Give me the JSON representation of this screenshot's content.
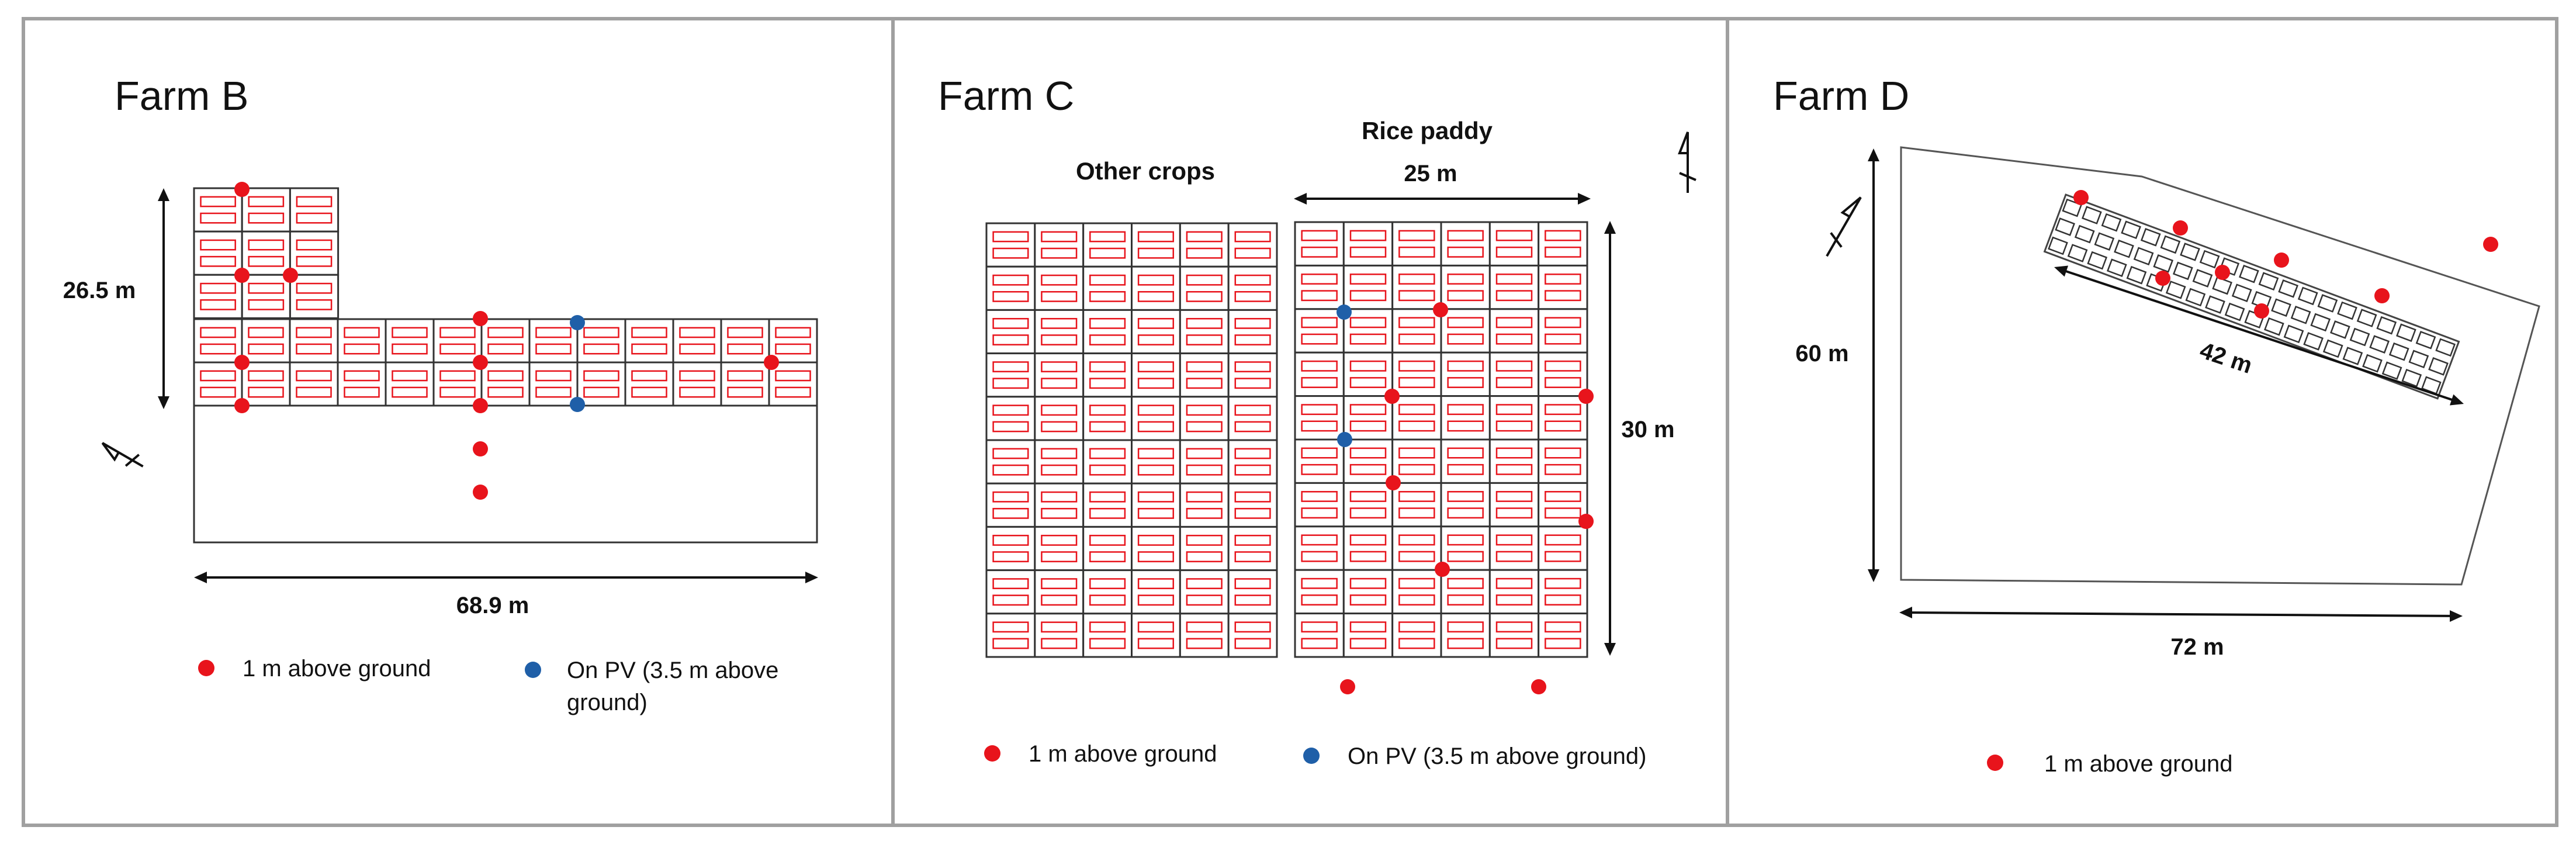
{
  "farm_b": {
    "title": "Farm B",
    "dim_height": "26.5 m",
    "dim_width": "68.9 m",
    "legend_red": "1 m above ground",
    "legend_blue_line1": "On PV (3.5 m above",
    "legend_blue_line2": "ground)"
  },
  "farm_c": {
    "title": "Farm C",
    "other_crops_label": "Other crops",
    "rice_paddy_label": "Rice paddy",
    "dim_width": "25 m",
    "dim_height": "30 m",
    "legend_red": "1 m above ground",
    "legend_blue": "On PV (3.5 m above ground)"
  },
  "farm_d": {
    "title": "Farm D",
    "dim_height": "60 m",
    "dim_width": "72 m",
    "dim_array": "42 m",
    "legend_red": "1 m above ground"
  },
  "colors": {
    "red_marker": "#e8141c",
    "blue_marker": "#1f5fa8",
    "panel_outline": "#e8141c",
    "border": "#a0a0a0"
  }
}
